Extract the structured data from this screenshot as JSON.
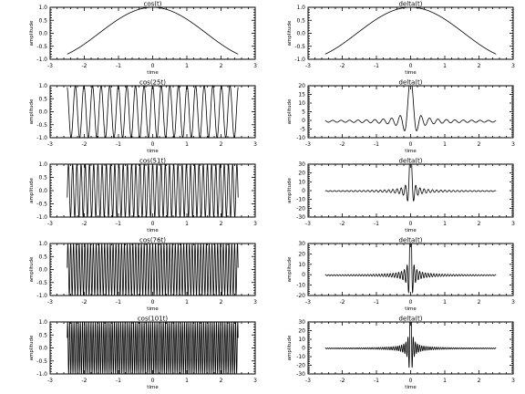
{
  "chart_data": [
    {
      "type": "line",
      "title": "cos(t)",
      "xlabel": "time",
      "ylabel": "amplitude",
      "xlim": [
        -3,
        3
      ],
      "ylim": [
        -1.0,
        1.0
      ],
      "xticks": [
        -3,
        -2,
        -1,
        0,
        1,
        2,
        3
      ],
      "yticks": [
        -1.0,
        -0.5,
        0.0,
        0.5,
        1.0
      ],
      "ytick_labels": [
        "-1.0",
        "-0.5",
        "0.0",
        "0.5",
        "1.0"
      ],
      "series": [
        {
          "function": "cos",
          "frequency": 1,
          "t_range": [
            -2.5,
            2.5
          ]
        }
      ]
    },
    {
      "type": "line",
      "title": "delta(t)",
      "xlabel": "time",
      "ylabel": "amplitude",
      "xlim": [
        -3,
        3
      ],
      "ylim": [
        -1.0,
        1.0
      ],
      "xticks": [
        -3,
        -2,
        -1,
        0,
        1,
        2,
        3
      ],
      "yticks": [
        -1.0,
        -0.5,
        0.0,
        0.5,
        1.0
      ],
      "ytick_labels": [
        "-1.0",
        "-0.5",
        "0.0",
        "0.5",
        "1.0"
      ],
      "series": [
        {
          "function": "cos_sum",
          "terms": 1,
          "t_range": [
            -2.5,
            2.5
          ]
        }
      ]
    },
    {
      "type": "line",
      "title": "cos(25t)",
      "xlabel": "time",
      "ylabel": "amplitude",
      "xlim": [
        -3,
        3
      ],
      "ylim": [
        -1.0,
        1.0
      ],
      "xticks": [
        -3,
        -2,
        -1,
        0,
        1,
        2,
        3
      ],
      "yticks": [
        -1.0,
        -0.5,
        0.0,
        0.5,
        1.0
      ],
      "ytick_labels": [
        "-1.0",
        "-0.5",
        "0.0",
        "0.5",
        "1.0"
      ],
      "series": [
        {
          "function": "cos",
          "frequency": 25,
          "t_range": [
            -2.5,
            2.5
          ]
        }
      ]
    },
    {
      "type": "line",
      "title": "delta(t)",
      "xlabel": "time",
      "ylabel": "amplitude",
      "xlim": [
        -3,
        3
      ],
      "ylim": [
        -10,
        20
      ],
      "xticks": [
        -3,
        -2,
        -1,
        0,
        1,
        2,
        3
      ],
      "yticks": [
        -10,
        -5,
        0,
        5,
        10,
        15,
        20
      ],
      "ytick_labels": [
        "-10",
        "-5",
        "0",
        "5",
        "10",
        "15",
        "20"
      ],
      "series": [
        {
          "function": "cos_sum",
          "terms": 25,
          "t_range": [
            -2.5,
            2.5
          ]
        }
      ]
    },
    {
      "type": "line",
      "title": "cos(51t)",
      "xlabel": "time",
      "ylabel": "amplitude",
      "xlim": [
        -3,
        3
      ],
      "ylim": [
        -1.0,
        1.0
      ],
      "xticks": [
        -3,
        -2,
        -1,
        0,
        1,
        2,
        3
      ],
      "yticks": [
        -1.0,
        -0.5,
        0.0,
        0.5,
        1.0
      ],
      "ytick_labels": [
        "-1.0",
        "-0.5",
        "0.0",
        "0.5",
        "1.0"
      ],
      "series": [
        {
          "function": "cos",
          "frequency": 51,
          "t_range": [
            -2.5,
            2.5
          ]
        }
      ]
    },
    {
      "type": "line",
      "title": "delta(t)",
      "xlabel": "time",
      "ylabel": "amplitude",
      "xlim": [
        -3,
        3
      ],
      "ylim": [
        -30,
        30
      ],
      "xticks": [
        -3,
        -2,
        -1,
        0,
        1,
        2,
        3
      ],
      "yticks": [
        -30,
        -20,
        -10,
        0,
        10,
        20,
        30
      ],
      "ytick_labels": [
        "-30",
        "-20",
        "-10",
        "0",
        "10",
        "20",
        "30"
      ],
      "series": [
        {
          "function": "cos_sum",
          "terms": 51,
          "t_range": [
            -2.5,
            2.5
          ]
        }
      ]
    },
    {
      "type": "line",
      "title": "cos(76t)",
      "xlabel": "time",
      "ylabel": "amplitude",
      "xlim": [
        -3,
        3
      ],
      "ylim": [
        -1.0,
        1.0
      ],
      "xticks": [
        -3,
        -2,
        -1,
        0,
        1,
        2,
        3
      ],
      "yticks": [
        -1.0,
        -0.5,
        0.0,
        0.5,
        1.0
      ],
      "ytick_labels": [
        "-1.0",
        "-0.5",
        "0.0",
        "0.5",
        "1.0"
      ],
      "series": [
        {
          "function": "cos",
          "frequency": 76,
          "t_range": [
            -2.5,
            2.5
          ]
        }
      ]
    },
    {
      "type": "line",
      "title": "delta(t)",
      "xlabel": "time",
      "ylabel": "amplitude",
      "xlim": [
        -3,
        3
      ],
      "ylim": [
        -20,
        30
      ],
      "xticks": [
        -3,
        -2,
        -1,
        0,
        1,
        2,
        3
      ],
      "yticks": [
        -20,
        -10,
        0,
        10,
        20,
        30
      ],
      "ytick_labels": [
        "-20",
        "-10",
        "0",
        "10",
        "20",
        "30"
      ],
      "series": [
        {
          "function": "cos_sum",
          "terms": 76,
          "t_range": [
            -2.5,
            2.5
          ]
        }
      ]
    },
    {
      "type": "line",
      "title": "cos(101t)",
      "xlabel": "time",
      "ylabel": "amplitude",
      "xlim": [
        -3,
        3
      ],
      "ylim": [
        -1.0,
        1.0
      ],
      "xticks": [
        -3,
        -2,
        -1,
        0,
        1,
        2,
        3
      ],
      "yticks": [
        -1.0,
        -0.5,
        0.0,
        0.5,
        1.0
      ],
      "ytick_labels": [
        "-1.0",
        "-0.5",
        "0.0",
        "0.5",
        "1.0"
      ],
      "series": [
        {
          "function": "cos",
          "frequency": 101,
          "t_range": [
            -2.5,
            2.5
          ]
        }
      ]
    },
    {
      "type": "line",
      "title": "delta(t)",
      "xlabel": "time",
      "ylabel": "amplitude",
      "xlim": [
        -3,
        3
      ],
      "ylim": [
        -30,
        30
      ],
      "xticks": [
        -3,
        -2,
        -1,
        0,
        1,
        2,
        3
      ],
      "yticks": [
        -30,
        -20,
        -10,
        0,
        10,
        20,
        30
      ],
      "ytick_labels": [
        "-30",
        "-20",
        "-10",
        "0",
        "10",
        "20",
        "30"
      ],
      "series": [
        {
          "function": "cos_sum",
          "terms": 101,
          "t_range": [
            -2.5,
            2.5
          ]
        }
      ]
    }
  ]
}
